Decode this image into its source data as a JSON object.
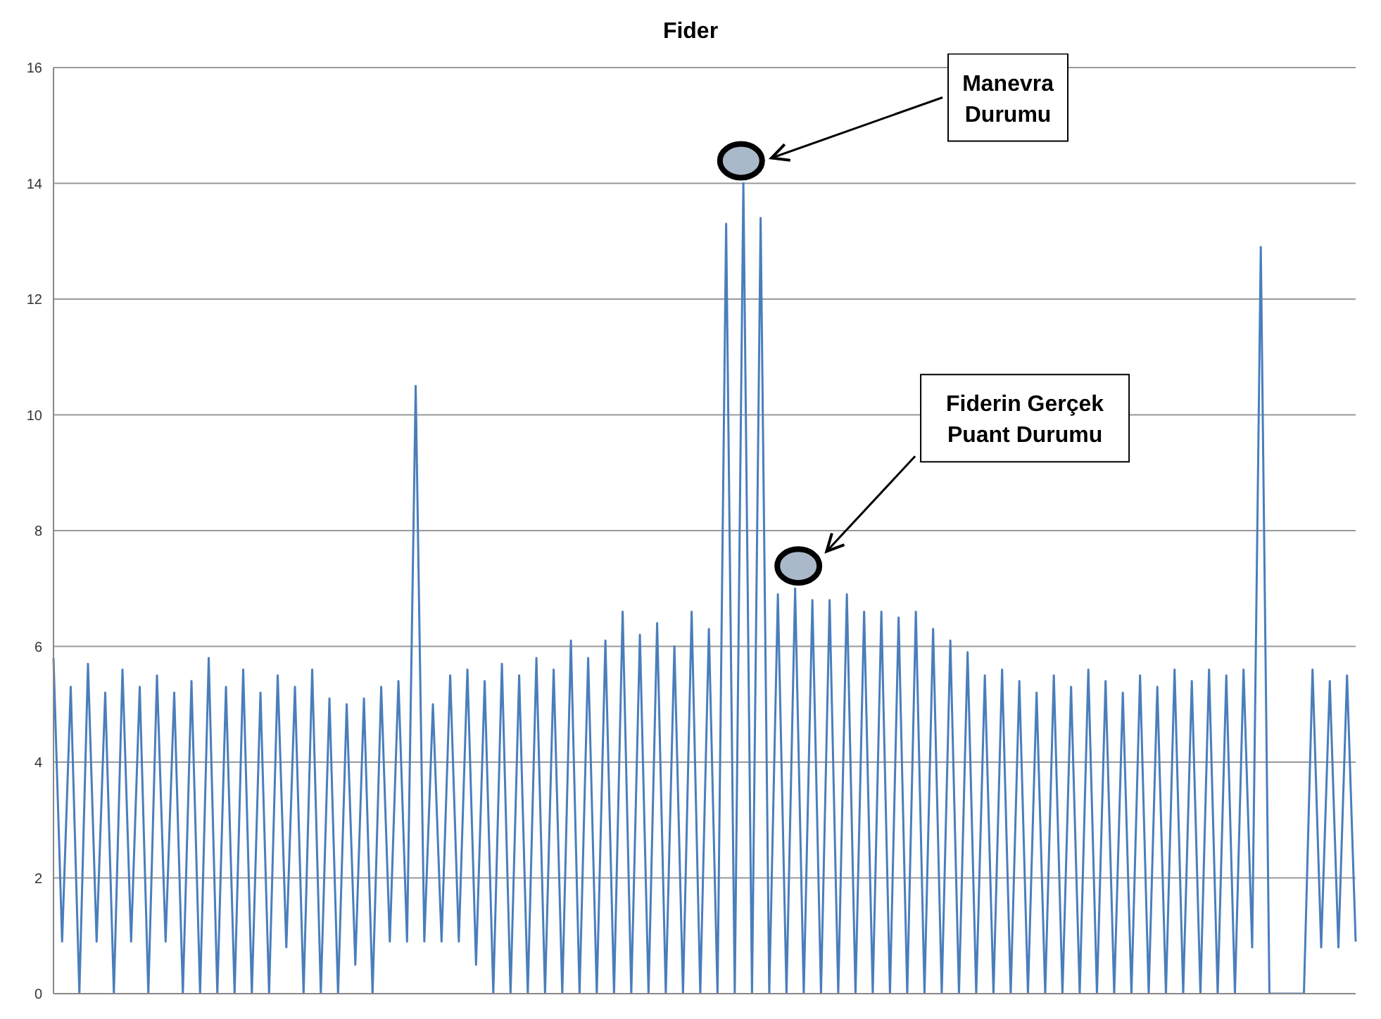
{
  "chart_data": {
    "type": "line",
    "title": "Fider",
    "categories": [
      null,
      null,
      null,
      null,
      null,
      null,
      null,
      null,
      null,
      null,
      null,
      null,
      null,
      null,
      null,
      null,
      null,
      null,
      null,
      null,
      null,
      null,
      null,
      null,
      null,
      null,
      null,
      null,
      null,
      null,
      null,
      null,
      null,
      null,
      null,
      null,
      null,
      null,
      null,
      null,
      null,
      null,
      null,
      null,
      null,
      null,
      null,
      null,
      null,
      null,
      null,
      null,
      null,
      null,
      null,
      null,
      null,
      null,
      null,
      null,
      null,
      null,
      null,
      null,
      null,
      null,
      null,
      null,
      null,
      null,
      null,
      null,
      null,
      null,
      null,
      null,
      null,
      null,
      null,
      null,
      null,
      null,
      null,
      null,
      null,
      null,
      null,
      null,
      null,
      null,
      null,
      null,
      null,
      null,
      null,
      null,
      null,
      null,
      null,
      null,
      null,
      null,
      null,
      null,
      null,
      null,
      null,
      null,
      null,
      null,
      null,
      null,
      null,
      null,
      null,
      null,
      null,
      null,
      null,
      null,
      null,
      null,
      null,
      null,
      null,
      null,
      null,
      null,
      null,
      null,
      null,
      null,
      null,
      null,
      null,
      null,
      null,
      null,
      null,
      null,
      null,
      null,
      null,
      null,
      null,
      null,
      null,
      null,
      null,
      null,
      null,
      null
    ],
    "series": [
      {
        "color": "#4a7ebb",
        "values": [
          5.8,
          0.9,
          5.3,
          0,
          5.7,
          0.9,
          5.2,
          0,
          5.6,
          0.9,
          5.3,
          0,
          5.5,
          0.9,
          5.2,
          0,
          5.4,
          0,
          5.8,
          0,
          5.3,
          0,
          5.6,
          0,
          5.2,
          0,
          5.5,
          0.8,
          5.3,
          0,
          5.6,
          0,
          5.1,
          0,
          5.0,
          0.5,
          5.1,
          0,
          5.3,
          0.9,
          5.4,
          0.9,
          10.5,
          0.9,
          5.0,
          0.9,
          5.5,
          0.9,
          5.6,
          0.5,
          5.4,
          0,
          5.7,
          0,
          5.5,
          0,
          5.8,
          0,
          5.6,
          0,
          6.1,
          0,
          5.8,
          0,
          6.1,
          0,
          6.6,
          0,
          6.2,
          0,
          6.4,
          0,
          6.0,
          0,
          6.6,
          0,
          6.3,
          0,
          13.3,
          0,
          14.0,
          0,
          13.4,
          0,
          6.9,
          0,
          7.0,
          0,
          6.8,
          0,
          6.8,
          0,
          6.9,
          0,
          6.6,
          0,
          6.6,
          0,
          6.5,
          0,
          6.6,
          0,
          6.3,
          0,
          6.1,
          0,
          5.9,
          0,
          5.5,
          0,
          5.6,
          0,
          5.4,
          0,
          5.2,
          0,
          5.5,
          0,
          5.3,
          0,
          5.6,
          0,
          5.4,
          0,
          5.2,
          0,
          5.5,
          0,
          5.3,
          0,
          5.6,
          0,
          5.4,
          0,
          5.6,
          0,
          5.5,
          0,
          5.6,
          0.8,
          12.9,
          0,
          0,
          0,
          0,
          0,
          5.6,
          0.8,
          5.4,
          0.8,
          5.5,
          0.9
        ]
      }
    ],
    "ylim": [
      0,
      16
    ],
    "yticks": [
      0,
      2,
      4,
      6,
      8,
      10,
      12,
      14,
      16
    ],
    "grid": "y",
    "annotations": [
      "Manevra Durumu",
      "Fiderin Gerçek Puant Durumu"
    ]
  }
}
